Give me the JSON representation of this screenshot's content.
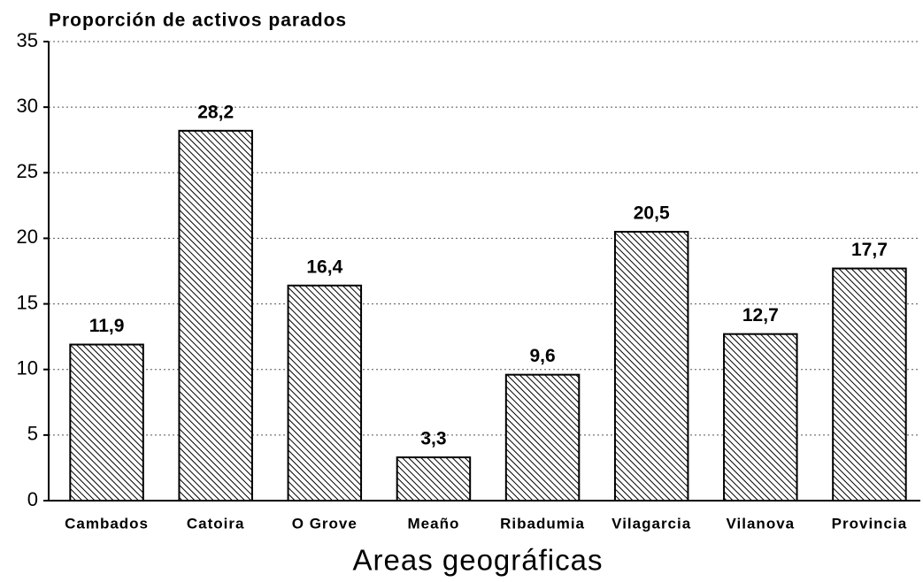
{
  "chart_data": {
    "type": "bar",
    "title": "Proporción de activos parados",
    "x_label": "Areas geográficas",
    "categories": [
      "Cambados",
      "Catoira",
      "O Grove",
      "Meaño",
      "Ribadumia",
      "Vilagarcia",
      "Vilanova",
      "Provincia"
    ],
    "values": [
      11.9,
      28.2,
      16.4,
      3.3,
      9.6,
      20.5,
      12.7,
      17.7
    ],
    "value_labels": [
      "11,9",
      "28,2",
      "16,4",
      "3,3",
      "9,6",
      "20,5",
      "12,7",
      "17,7"
    ],
    "color": "#000000",
    "ylim": [
      0,
      35
    ],
    "yticks": [
      0,
      5,
      10,
      15,
      20,
      25,
      30,
      35
    ],
    "grid": true
  }
}
